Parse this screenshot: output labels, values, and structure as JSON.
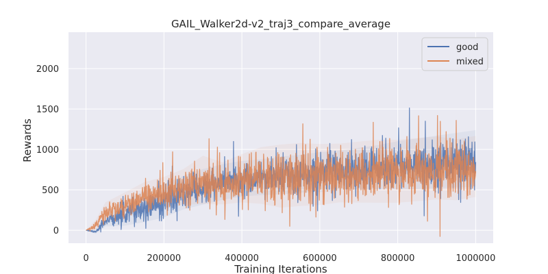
{
  "chart_data": {
    "type": "line",
    "title": "GAIL_Walker2d-v2_traj3_compare_average",
    "xlabel": "Training Iterations",
    "ylabel": "Rewards",
    "xlim": [
      -45000,
      1045000
    ],
    "ylim": [
      -160,
      2450
    ],
    "x_ticks": [
      0,
      200000,
      400000,
      600000,
      800000,
      1000000
    ],
    "x_tick_labels": [
      "0",
      "200000",
      "400000",
      "600000",
      "800000",
      "1000000"
    ],
    "y_ticks": [
      0,
      500,
      1000,
      1500,
      2000
    ],
    "y_tick_labels": [
      "0",
      "500",
      "1000",
      "1500",
      "2000"
    ],
    "grid": true,
    "legend_position": "top-right",
    "background": "#eaeaf2",
    "series": [
      {
        "name": "good",
        "color": "#4c72b0",
        "x": [
          0,
          25000,
          50000,
          100000,
          150000,
          200000,
          250000,
          300000,
          350000,
          400000,
          450000,
          500000,
          550000,
          600000,
          650000,
          700000,
          750000,
          800000,
          850000,
          900000,
          950000,
          1000000
        ],
        "y": [
          0,
          -20,
          120,
          200,
          280,
          350,
          450,
          520,
          580,
          620,
          640,
          660,
          680,
          700,
          720,
          740,
          760,
          780,
          800,
          820,
          840,
          860
        ],
        "band": [
          0,
          20,
          60,
          120,
          150,
          160,
          160,
          170,
          170,
          170,
          170,
          180,
          180,
          190,
          190,
          200,
          210,
          230,
          240,
          250,
          260,
          270
        ]
      },
      {
        "name": "mixed",
        "color": "#dd8452",
        "x": [
          0,
          25000,
          50000,
          100000,
          150000,
          200000,
          250000,
          300000,
          350000,
          400000,
          450000,
          500000,
          550000,
          600000,
          650000,
          700000,
          750000,
          800000,
          850000,
          900000,
          950000,
          1000000
        ],
        "y": [
          0,
          60,
          220,
          300,
          400,
          450,
          520,
          600,
          560,
          620,
          650,
          640,
          660,
          660,
          680,
          690,
          700,
          700,
          720,
          740,
          720,
          760
        ],
        "band": [
          0,
          50,
          90,
          120,
          140,
          150,
          170,
          230,
          200,
          230,
          270,
          300,
          300,
          290,
          280,
          290,
          300,
          300,
          300,
          300,
          290,
          290
        ]
      }
    ]
  }
}
